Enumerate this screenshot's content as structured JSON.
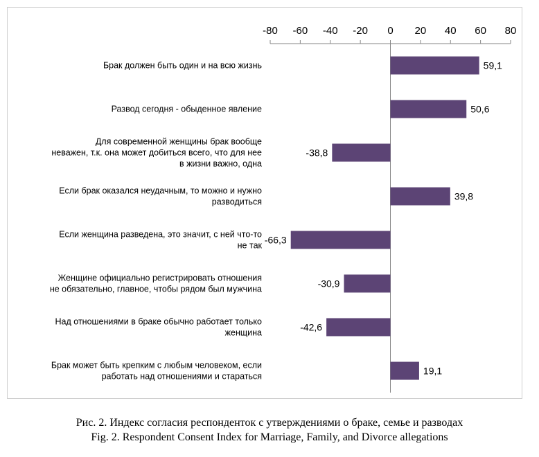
{
  "chart_data": {
    "type": "bar",
    "orientation": "horizontal",
    "xlim": [
      -80,
      80
    ],
    "x_ticks": [
      "-80",
      "-60",
      "-40",
      "-20",
      "0",
      "20",
      "40",
      "60",
      "80"
    ],
    "x_tick_values": [
      -80,
      -60,
      -40,
      -20,
      0,
      20,
      40,
      60,
      80
    ],
    "x_axis_position": "top",
    "grid": false,
    "legend": "none",
    "bar_color": "#5c4475",
    "categories": [
      [
        "Брак должен быть один и на всю жизнь"
      ],
      [
        "Развод сегодня - обыденное явление"
      ],
      [
        "Для современной женщины брак вообще",
        "неважен, т.к. она может добиться всего, что для нее",
        "в жизни важно, одна"
      ],
      [
        "Если брак оказался неудачным, то можно и нужно",
        "разводиться"
      ],
      [
        "Если женщина разведена, это значит, с ней что-то",
        "не так"
      ],
      [
        "Женщине официально регистрировать отношения",
        "не обязательно, главное, чтобы рядом был мужчина"
      ],
      [
        "Над отношениями в браке обычно работает только",
        "женщина"
      ],
      [
        "Брак может быть крепким с любым человеком, если",
        "работать над отношениями и стараться"
      ]
    ],
    "values": [
      59.1,
      50.6,
      -38.8,
      39.8,
      -66.3,
      -30.9,
      -42.6,
      19.1
    ],
    "value_labels": [
      "59,1",
      "50,6",
      "-38,8",
      "39,8",
      "-66,3",
      "-30,9",
      "-42,6",
      "19,1"
    ]
  },
  "caption": {
    "line_ru": "Рис. 2. Индекс согласия респонденток с утверждениями о браке, семье и разводах",
    "line_en": "Fig. 2. Respondent Consent Index for Marriage, Family, and Divorce allegations"
  }
}
